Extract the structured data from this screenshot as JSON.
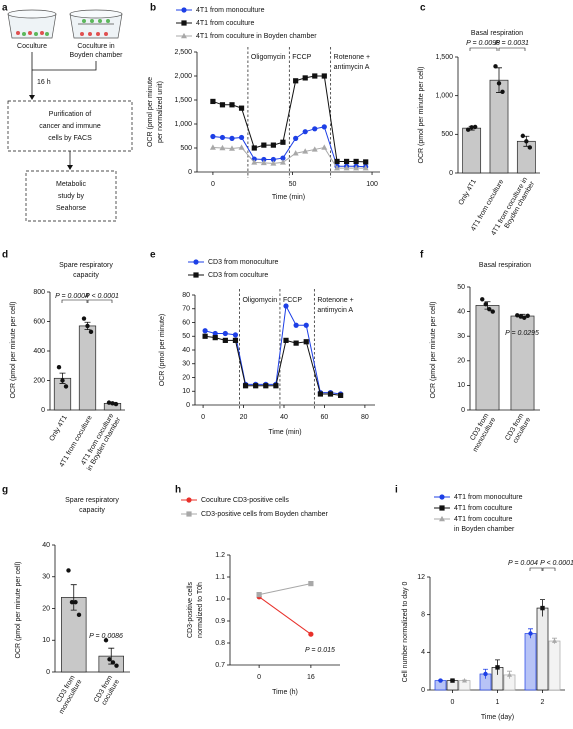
{
  "diagram": {
    "panel": "a",
    "dish_left": "Coculture",
    "dish_right": [
      "Coculture in",
      "Boyden chamber"
    ],
    "step_time": "16 h",
    "box1": [
      "Purification of",
      "cancer and immune",
      "cells by FACS"
    ],
    "box2": [
      "Metabolic",
      "study by",
      "Seahorse"
    ]
  },
  "chart_data": [
    {
      "panel": "b",
      "type": "line",
      "xlabel": "Time (min)",
      "ylabel": [
        "OCR (pmol per minute",
        "per normalized unit)"
      ],
      "x": [
        0,
        6,
        12,
        18,
        26,
        32,
        38,
        44,
        52,
        58,
        64,
        70,
        78,
        84,
        90,
        96
      ],
      "xlim": [
        -10,
        105
      ],
      "xticks": [
        0,
        50,
        100
      ],
      "ylim": [
        0,
        2500
      ],
      "yticks": [
        0,
        500,
        {
          "value": 1000,
          "label": "1,000"
        },
        {
          "value": 1500,
          "label": "1,500"
        },
        {
          "value": 2000,
          "label": "2,000"
        },
        {
          "value": 2500,
          "label": "2,500"
        }
      ],
      "series": [
        {
          "name": "4T1 from monoculture",
          "color": "#1d3fe6",
          "marker": "circle",
          "values": [
            740,
            720,
            700,
            720,
            270,
            260,
            260,
            290,
            700,
            840,
            900,
            940,
            120,
            120,
            120,
            110
          ]
        },
        {
          "name": "4T1 from coculture",
          "color": "#111111",
          "marker": "square",
          "values": [
            1470,
            1400,
            1400,
            1330,
            500,
            560,
            560,
            620,
            1900,
            1960,
            2000,
            2000,
            220,
            220,
            220,
            210
          ]
        },
        {
          "name": "4T1 from coculture in Boyden chamber",
          "color": "#a8a8a8",
          "marker": "triangle",
          "values": [
            510,
            500,
            490,
            510,
            200,
            190,
            180,
            200,
            390,
            430,
            470,
            510,
            80,
            80,
            80,
            80
          ]
        }
      ],
      "injections": [
        {
          "label": [
            "Oligomycin"
          ],
          "x": 22
        },
        {
          "label": [
            "FCCP"
          ],
          "x": 48
        },
        {
          "label": [
            "Rotenone +",
            "antimycin A"
          ],
          "x": 74
        }
      ]
    },
    {
      "panel": "c",
      "type": "bar",
      "title": [
        "Basal respiration"
      ],
      "ylabel": [
        "OCR (pmol per minute per cell)"
      ],
      "categories": [
        [
          "Only 4T1"
        ],
        [
          "4T1 from coculture"
        ],
        [
          "4T1 from coculture in",
          "Boyden chamber"
        ]
      ],
      "values": [
        580,
        1200,
        410
      ],
      "errors": [
        25,
        160,
        65
      ],
      "points": [
        [
          560,
          590,
          595
        ],
        [
          1380,
          1160,
          1050
        ],
        [
          480,
          410,
          330
        ]
      ],
      "ylim": [
        0,
        1500
      ],
      "yticks": [
        0,
        500,
        {
          "value": 1000,
          "label": "1,000"
        },
        {
          "value": 1500,
          "label": "1,500"
        }
      ],
      "color": "#c8c8c8",
      "annotations": [
        "P = 0.0098",
        "P = 0.0031"
      ]
    },
    {
      "panel": "d",
      "type": "bar",
      "title": [
        "Spare respiratory",
        "capacity"
      ],
      "ylabel": [
        "OCR (pmol per minute per cell)"
      ],
      "categories": [
        [
          "Only 4T1"
        ],
        [
          "4T1 from coculture"
        ],
        [
          "4T1 from coculture",
          "in Boyden chamber"
        ]
      ],
      "values": [
        215,
        570,
        45
      ],
      "errors": [
        35,
        25,
        5
      ],
      "points": [
        [
          290,
          200,
          160
        ],
        [
          620,
          570,
          530
        ],
        [
          50,
          45,
          40
        ]
      ],
      "ylim": [
        0,
        800
      ],
      "yticks": [
        0,
        200,
        400,
        600,
        800
      ],
      "color": "#c8c8c8",
      "annotations": [
        "P = 0.0004",
        "P < 0.0001"
      ]
    },
    {
      "panel": "e",
      "type": "line",
      "xlabel": "Time (min)",
      "ylabel": [
        "OCR (pmol per minute)"
      ],
      "x": [
        1,
        6,
        11,
        16,
        21,
        26,
        31,
        36,
        41,
        46,
        51,
        58,
        63,
        68
      ],
      "xlim": [
        -4,
        85
      ],
      "xticks": [
        0,
        20,
        40,
        60,
        80
      ],
      "ylim": [
        0,
        80
      ],
      "yticks": [
        0,
        10,
        20,
        30,
        40,
        50,
        60,
        70,
        80
      ],
      "series": [
        {
          "name": "CD3 from monoculture",
          "color": "#1d3fe6",
          "marker": "circle",
          "values": [
            54,
            52,
            52,
            51,
            15,
            15,
            15,
            15,
            72,
            58,
            58,
            9,
            9,
            8
          ]
        },
        {
          "name": "CD3 from coculture",
          "color": "#111111",
          "marker": "square",
          "values": [
            50,
            49,
            47,
            47,
            14,
            14,
            14,
            14,
            47,
            45,
            46,
            8,
            8,
            7
          ]
        }
      ],
      "injections": [
        {
          "label": [
            "Oligomycin"
          ],
          "x": 18
        },
        {
          "label": [
            "FCCP"
          ],
          "x": 38
        },
        {
          "label": [
            "Rotenone +",
            "antimycin A"
          ],
          "x": 55
        }
      ]
    },
    {
      "panel": "f",
      "type": "bar",
      "title": [
        "Basal respiration"
      ],
      "ylabel": [
        "OCR (pmol per minute per cell)"
      ],
      "categories": [
        [
          "CD3 from",
          "monoculture"
        ],
        [
          "CD3 from",
          "coculture"
        ]
      ],
      "values": [
        42.5,
        38.2
      ],
      "errors": [
        1.5,
        0.7
      ],
      "points": [
        [
          45,
          43,
          41,
          40
        ],
        [
          38.5,
          38,
          37.5,
          38.3
        ]
      ],
      "ylim": [
        0,
        50
      ],
      "yticks": [
        0,
        10,
        20,
        30,
        40,
        50
      ],
      "color": "#c8c8c8",
      "annotations": [
        "P = 0.0295"
      ]
    },
    {
      "panel": "g",
      "type": "bar",
      "title": [
        "Spare respiratory",
        "capacity"
      ],
      "ylabel": [
        "OCR (pmol per minute per cell)"
      ],
      "categories": [
        [
          "CD3 from",
          "monoculture"
        ],
        [
          "CD3 from",
          "coculture"
        ]
      ],
      "values": [
        23.5,
        5
      ],
      "errors": [
        4,
        2.5
      ],
      "points": [
        [
          32,
          22,
          22,
          18
        ],
        [
          10,
          4,
          3,
          2
        ]
      ],
      "ylim": [
        0,
        40
      ],
      "yticks": [
        0,
        10,
        20,
        30,
        40
      ],
      "color": "#c8c8c8",
      "annotations": [
        "P = 0.0086"
      ]
    },
    {
      "panel": "h",
      "type": "line",
      "xlabel": "Time (h)",
      "ylabel": [
        "CD3-positive cells",
        "normalized to T0h"
      ],
      "x": [
        0,
        16
      ],
      "xlim": [
        -9,
        25
      ],
      "xticks": [
        0,
        16
      ],
      "ylim": [
        0.7,
        1.2
      ],
      "yticks": [
        0.7,
        0.8,
        0.9,
        {
          "value": 1,
          "label": "1.0"
        },
        1.1,
        1.2
      ],
      "series": [
        {
          "name": "Coculture CD3-positive cells",
          "color": "#e8302a",
          "marker": "circle",
          "values": [
            1.01,
            0.84
          ]
        },
        {
          "name": "CD3-positive cells from Boyden chamber",
          "color": "#a8a8a8",
          "marker": "square",
          "values": [
            1.02,
            1.07
          ]
        }
      ],
      "annotations": [
        "P = 0.015"
      ]
    },
    {
      "panel": "i",
      "type": "groupedbar",
      "xlabel": "Time (day)",
      "ylabel": [
        "Cell number normalized to day 0"
      ],
      "categories": [
        "0",
        "1",
        "2"
      ],
      "ylim": [
        0,
        12
      ],
      "yticks": [
        0,
        4,
        8,
        12
      ],
      "series": [
        {
          "name": [
            "4T1 from monoculture"
          ],
          "color": "#1d3fe6",
          "fill": "#b7c3f6",
          "marker": "circle",
          "values": [
            1,
            1.7,
            6
          ],
          "errors": [
            0.05,
            0.5,
            0.5
          ]
        },
        {
          "name": [
            "4T1 from coculture"
          ],
          "color": "#111111",
          "fill": "#ececec",
          "marker": "square",
          "values": [
            1,
            2.4,
            8.7
          ],
          "errors": [
            0.05,
            0.8,
            0.9
          ]
        },
        {
          "name": [
            "4T1 from coculture",
            "in Boyden chamber"
          ],
          "color": "#a8a8a8",
          "fill": "#f3f3f3",
          "marker": "triangle",
          "values": [
            1,
            1.6,
            5.2
          ],
          "errors": [
            0.05,
            0.4,
            0.3
          ]
        }
      ],
      "annotations": [
        "P = 0.004",
        "P < 0.0001"
      ]
    }
  ]
}
